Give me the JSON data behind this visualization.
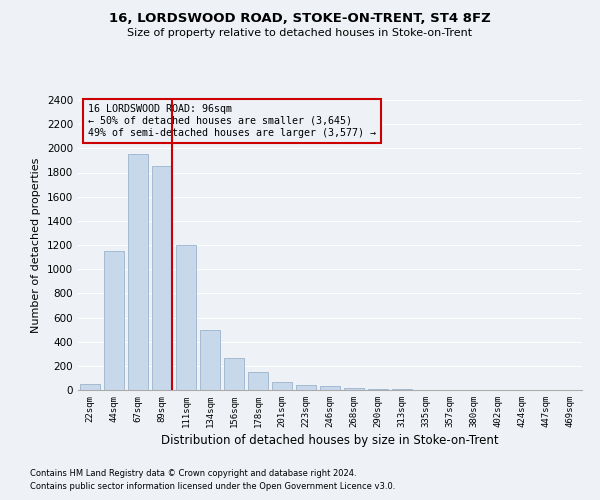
{
  "title1": "16, LORDSWOOD ROAD, STOKE-ON-TRENT, ST4 8FZ",
  "title2": "Size of property relative to detached houses in Stoke-on-Trent",
  "xlabel": "Distribution of detached houses by size in Stoke-on-Trent",
  "ylabel": "Number of detached properties",
  "footnote1": "Contains HM Land Registry data © Crown copyright and database right 2024.",
  "footnote2": "Contains public sector information licensed under the Open Government Licence v3.0.",
  "categories": [
    "22sqm",
    "44sqm",
    "67sqm",
    "89sqm",
    "111sqm",
    "134sqm",
    "156sqm",
    "178sqm",
    "201sqm",
    "223sqm",
    "246sqm",
    "268sqm",
    "290sqm",
    "313sqm",
    "335sqm",
    "357sqm",
    "380sqm",
    "402sqm",
    "424sqm",
    "447sqm",
    "469sqm"
  ],
  "values": [
    50,
    1150,
    1950,
    1850,
    1200,
    500,
    265,
    150,
    65,
    40,
    35,
    20,
    10,
    5,
    3,
    2,
    1,
    1,
    1,
    1,
    1
  ],
  "highlight_index": 3,
  "bar_color": "#c8d8eb",
  "bar_edge_color": "#9ab4cc",
  "annotation_title": "16 LORDSWOOD ROAD: 96sqm",
  "annotation_line1": "← 50% of detached houses are smaller (3,645)",
  "annotation_line2": "49% of semi-detached houses are larger (3,577) →",
  "ylim": [
    0,
    2400
  ],
  "yticks": [
    0,
    200,
    400,
    600,
    800,
    1000,
    1200,
    1400,
    1600,
    1800,
    2000,
    2200,
    2400
  ],
  "bg_color": "#eef2f7",
  "grid_color": "#ffffff",
  "box_color": "#cc0000",
  "spine_color": "#aaaaaa"
}
